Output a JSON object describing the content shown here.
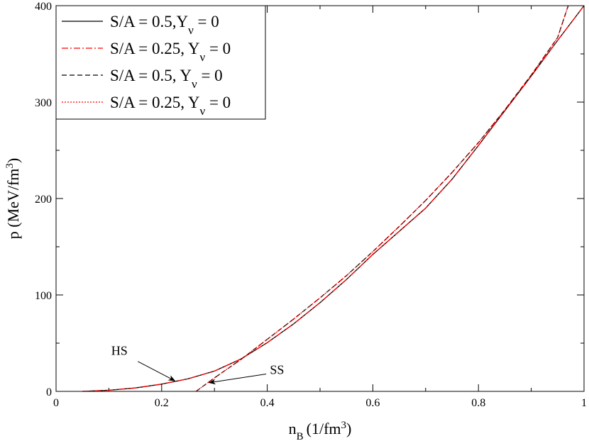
{
  "chart_data": {
    "type": "line",
    "xlabel": "n",
    "xlabel_sub": "B",
    "xlabel_units": "(1/fm",
    "xlabel_sup": "3",
    "xlabel_close": ")",
    "ylabel": "p (MeV/fm",
    "ylabel_sup": "3",
    "ylabel_close": ")",
    "xlim": [
      0,
      1
    ],
    "ylim": [
      0,
      400
    ],
    "x_ticks": [
      {
        "value": 0,
        "label": "0"
      },
      {
        "value": 0.2,
        "label": "0.2"
      },
      {
        "value": 0.4,
        "label": "0.4"
      },
      {
        "value": 0.6,
        "label": "0.6"
      },
      {
        "value": 0.8,
        "label": "0.8"
      },
      {
        "value": 1,
        "label": "1"
      }
    ],
    "y_ticks": [
      {
        "value": 0,
        "label": "0"
      },
      {
        "value": 100,
        "label": "100"
      },
      {
        "value": 200,
        "label": "200"
      },
      {
        "value": 300,
        "label": "300"
      },
      {
        "value": 400,
        "label": "400"
      }
    ],
    "grid": false,
    "legend_position": "top-left",
    "legend": [
      {
        "main": "S/A = 0.5,Y",
        "sub": "ν",
        "tail": " = 0",
        "color": "#000000",
        "dash": "solid"
      },
      {
        "main": "S/A = 0.25, Y",
        "sub": "ν",
        "tail": " = 0",
        "color": "#ff0000",
        "dash": "dashdot"
      },
      {
        "main": "S/A = 0.5, Y",
        "sub": "ν",
        "tail": " = 0",
        "color": "#000000",
        "dash": "dashed"
      },
      {
        "main": "S/A = 0.25, Y",
        "sub": "ν",
        "tail": " = 0",
        "color": "#ff0000",
        "dash": "dotted"
      }
    ],
    "series": [
      {
        "color": "#000000",
        "dash": "solid",
        "x": [
          0.05,
          0.1,
          0.15,
          0.2,
          0.25,
          0.3,
          0.35,
          0.4,
          0.45,
          0.5,
          0.55,
          0.6,
          0.65,
          0.7,
          0.75,
          0.8,
          0.85,
          0.9,
          0.95,
          1.0
        ],
        "y": [
          0,
          1.2,
          3.5,
          7.5,
          13,
          21,
          33.5,
          50.5,
          70,
          92,
          116,
          142,
          166,
          190,
          220,
          255,
          291,
          327,
          364,
          400
        ]
      },
      {
        "color": "#ff0000",
        "dash": "dashdot",
        "x": [
          0.05,
          0.1,
          0.15,
          0.2,
          0.25,
          0.3,
          0.35,
          0.4,
          0.45,
          0.5,
          0.55,
          0.6,
          0.65,
          0.7,
          0.75,
          0.8,
          0.85,
          0.9,
          0.95,
          1.0
        ],
        "y": [
          0,
          1.2,
          3.5,
          7.5,
          13,
          21,
          33.5,
          50.5,
          70,
          92,
          116,
          142,
          166,
          190,
          220,
          255,
          291,
          327,
          364,
          400
        ]
      },
      {
        "color": "#000000",
        "dash": "dashed",
        "x": [
          0.265,
          0.3,
          0.35,
          0.4,
          0.45,
          0.5,
          0.55,
          0.6,
          0.65,
          0.7,
          0.75,
          0.8,
          0.85,
          0.9,
          0.95,
          0.97
        ],
        "y": [
          0,
          14,
          33,
          54,
          75,
          97,
          120,
          145,
          171,
          198,
          227,
          258,
          292,
          328,
          367,
          400
        ]
      },
      {
        "color": "#ff0000",
        "dash": "dotted",
        "x": [
          0.265,
          0.3,
          0.35,
          0.4,
          0.45,
          0.5,
          0.55,
          0.6,
          0.65,
          0.7,
          0.75,
          0.8,
          0.85,
          0.9,
          0.95,
          0.97
        ],
        "y": [
          0,
          14,
          33,
          54,
          75,
          97,
          120,
          145,
          171,
          198,
          227,
          258,
          292,
          328,
          367,
          400
        ]
      }
    ],
    "annotations": [
      {
        "text": "HS",
        "text_x": 0.12,
        "text_y": 38,
        "from_x": 0.155,
        "from_y": 31,
        "to_x": 0.225,
        "to_y": 11
      },
      {
        "text": "SS",
        "text_x": 0.405,
        "text_y": 18,
        "from_x": 0.398,
        "from_y": 18,
        "to_x": 0.29,
        "to_y": 9
      }
    ]
  }
}
